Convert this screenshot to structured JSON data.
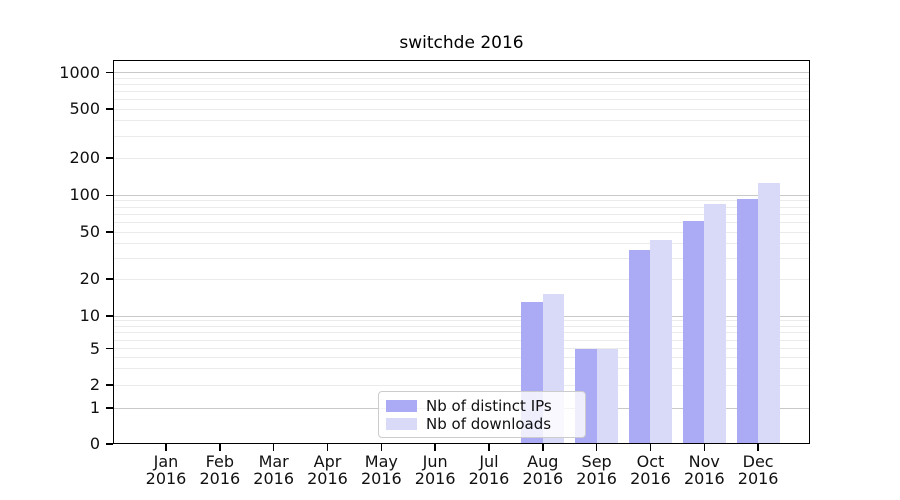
{
  "chart_data": {
    "type": "bar",
    "title": "switchde 2016",
    "categories": [
      "Jan 2016",
      "Feb 2016",
      "Mar 2016",
      "Apr 2016",
      "May 2016",
      "Jun 2016",
      "Jul 2016",
      "Aug 2016",
      "Sep 2016",
      "Oct 2016",
      "Nov 2016",
      "Dec 2016"
    ],
    "series": [
      {
        "name": "Nb of distinct IPs",
        "color": "#aaaaf5",
        "values": [
          0,
          0,
          0,
          0,
          0,
          0,
          0,
          13,
          5,
          35,
          62,
          93
        ]
      },
      {
        "name": "Nb of downloads",
        "color": "#d9d9f8",
        "values": [
          0,
          0,
          0,
          0,
          0,
          0,
          0,
          15,
          5,
          43,
          85,
          125
        ]
      }
    ],
    "y_axis": {
      "scale": "symlog",
      "ticks": [
        0,
        1,
        2,
        5,
        10,
        20,
        50,
        100,
        200,
        500,
        1000
      ],
      "major_gridlines": [
        1,
        10,
        100,
        1000
      ],
      "ylim": [
        0,
        1300
      ]
    },
    "x_axis": {
      "label": ""
    },
    "grid": true,
    "legend_position": "lower center"
  }
}
